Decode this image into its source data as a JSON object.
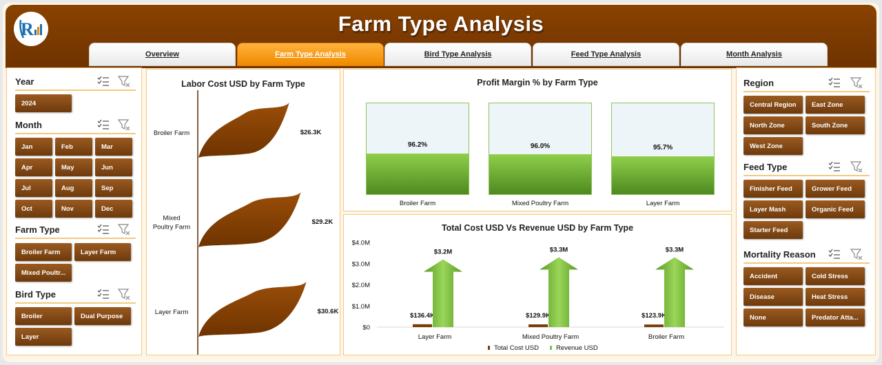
{
  "header": {
    "title": "Farm Type Analysis"
  },
  "tabs": [
    {
      "label": "Overview",
      "active": false
    },
    {
      "label": "Farm Type Analysis",
      "active": true
    },
    {
      "label": "Bird Type Analysis",
      "active": false
    },
    {
      "label": "Feed Type Analysis",
      "active": false
    },
    {
      "label": "Month Analysis",
      "active": false
    }
  ],
  "left_slicers": {
    "year": {
      "title": "Year",
      "items": [
        "2024"
      ]
    },
    "month": {
      "title": "Month",
      "items": [
        "Jan",
        "Feb",
        "Mar",
        "Apr",
        "May",
        "Jun",
        "Jul",
        "Aug",
        "Sep",
        "Oct",
        "Nov",
        "Dec"
      ]
    },
    "farm_type": {
      "title": "Farm Type",
      "items": [
        "Broiler Farm",
        "Layer Farm",
        "Mixed Poultr..."
      ]
    },
    "bird_type": {
      "title": "Bird Type",
      "items": [
        "Broiler",
        "Dual Purpose",
        "Layer"
      ]
    }
  },
  "right_slicers": {
    "region": {
      "title": "Region",
      "items": [
        "Central Region",
        "East Zone",
        "North Zone",
        "South Zone",
        "West Zone"
      ]
    },
    "feed_type": {
      "title": "Feed Type",
      "items": [
        "Finisher Feed",
        "Grower Feed",
        "Layer Mash",
        "Organic Feed",
        "Starter Feed"
      ]
    },
    "mortality": {
      "title": "Mortality Reason",
      "items": [
        "Accident",
        "Cold Stress",
        "Disease",
        "Heat Stress",
        "None",
        "Predator Atta..."
      ]
    }
  },
  "icons": {
    "multi_select": "multi-select-icon",
    "clear_filter": "clear-filter-icon"
  },
  "colors": {
    "brown": "#7a3d0a",
    "orange": "#f08a00",
    "green": "#7cc242",
    "panel_border": "#f5c77e"
  },
  "chart_data": [
    {
      "type": "bar",
      "title": "Labor Cost USD by Farm Type",
      "categories": [
        "Broiler Farm",
        "Mixed Poultry Farm",
        "Layer Farm"
      ],
      "category_labels": [
        [
          "Broiler Farm"
        ],
        [
          "Mixed",
          "Poultry Farm"
        ],
        [
          "Layer Farm"
        ]
      ],
      "values": [
        26300,
        29200,
        30600
      ],
      "data_labels": [
        "$26.3K",
        "$29.2K",
        "$30.6K"
      ],
      "orientation": "horizontal"
    },
    {
      "type": "bar",
      "title": "Profit Margin % by Farm Type",
      "categories": [
        "Broiler Farm",
        "Mixed Poultry Farm",
        "Layer Farm"
      ],
      "values": [
        96.2,
        96.0,
        95.7
      ],
      "data_labels": [
        "96.2%",
        "96.0%",
        "95.7%"
      ],
      "ylim": [
        0,
        100
      ]
    },
    {
      "type": "bar",
      "title": "Total Cost USD Vs Revenue USD by Farm Type",
      "categories": [
        "Layer Farm",
        "Mixed Poultry Farm",
        "Broiler Farm"
      ],
      "yticks": [
        "$4.0M",
        "$3.0M",
        "$2.0M",
        "$1.0M",
        "$0"
      ],
      "ylim": [
        0,
        4000000
      ],
      "series": [
        {
          "name": "Total Cost USD",
          "values": [
            136400,
            129900,
            123900
          ],
          "data_labels": [
            "$136.4K",
            "$129.9K",
            "$123.9K"
          ],
          "color": "#7a3d0a"
        },
        {
          "name": "Revenue USD",
          "values": [
            3200000,
            3300000,
            3300000
          ],
          "data_labels": [
            "$3.2M",
            "$3.3M",
            "$3.3M"
          ],
          "color": "#7cc242"
        }
      ]
    }
  ]
}
